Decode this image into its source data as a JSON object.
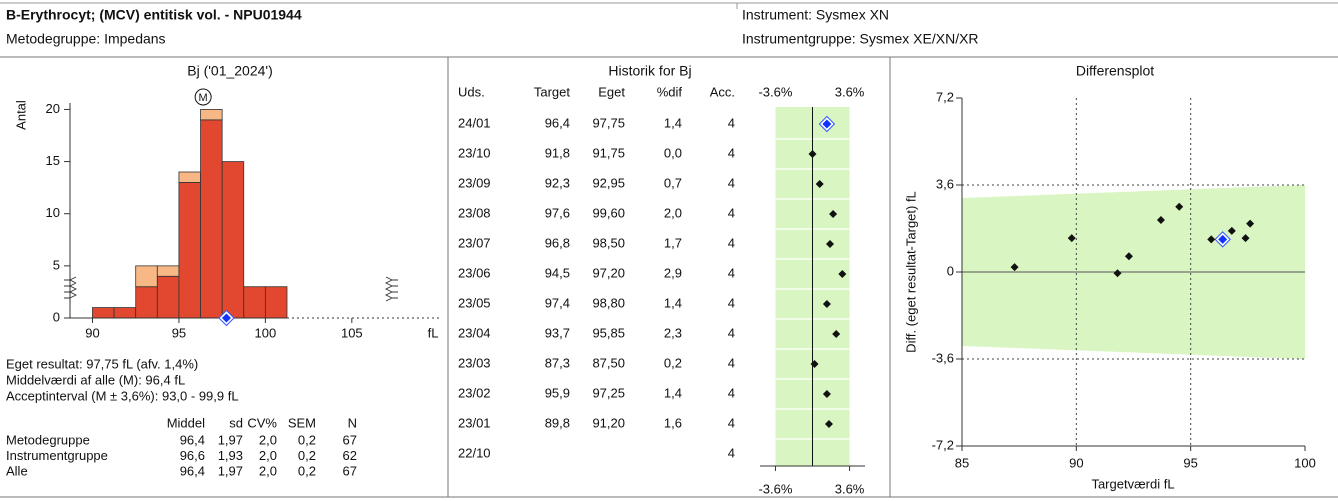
{
  "header": {
    "title": "B-Erythrocyt; (MCV) entitisk vol. - NPU01944",
    "method_group": "Metodegruppe: Impedans",
    "instrument": "Instrument: Sysmex XN",
    "instrument_group": "Instrumentgruppe: Sysmex XE/XN/XR"
  },
  "chart_data": [
    {
      "type": "histogram",
      "title": "Bj ('01_2024')",
      "ylabel": "Antal",
      "xlabel": "fL",
      "bins": [
        90,
        91.25,
        92.5,
        93.75,
        95,
        96.25,
        97.5,
        98.75,
        100,
        101.25
      ],
      "series": [
        {
          "color": "#e2482f",
          "values": [
            1,
            1,
            3,
            4,
            13,
            19,
            15,
            3,
            3
          ]
        },
        {
          "color": "#f8b886",
          "values": [
            0,
            0,
            2,
            1,
            1,
            1,
            0,
            0,
            0
          ]
        }
      ],
      "xlim": [
        88.7,
        110.1
      ],
      "xticks": [
        90,
        95,
        100,
        105
      ],
      "ylim": [
        0,
        21
      ],
      "yticks": [
        0,
        5,
        10,
        15,
        20
      ],
      "mean_marker": {
        "label": "M",
        "value": 96.4
      },
      "own_result": 97.75
    },
    {
      "type": "dot",
      "title": "Historik for Bj",
      "values": [
        1.4,
        0.0,
        0.7,
        2.0,
        1.7,
        2.9,
        1.4,
        2.3,
        0.2,
        1.4,
        1.6,
        null
      ],
      "xlim": [
        -5.1,
        5.1
      ],
      "xticks": [
        {
          "value": -3.6,
          "label": "-3.6%"
        },
        {
          "value": 3.6,
          "label": "3.6%"
        }
      ],
      "band_color": "#d8f5c2"
    },
    {
      "type": "scatter",
      "title": "Differensplot",
      "xlabel": "Targetværdi fL",
      "ylabel": "Diff. (eget resultat-Target) fL",
      "x": [
        96.4,
        91.8,
        92.3,
        97.6,
        96.8,
        94.5,
        97.4,
        93.7,
        87.3,
        95.9,
        89.8
      ],
      "values": [
        1.35,
        -0.05,
        0.65,
        2.0,
        1.7,
        2.7,
        1.4,
        2.15,
        0.2,
        1.35,
        1.4
      ],
      "xlim": [
        85,
        100
      ],
      "xticks": [
        85,
        90,
        95,
        100
      ],
      "ylim": [
        -7.2,
        7.2
      ],
      "yticks": [
        {
          "value": 7.2,
          "label": "7,2"
        },
        {
          "value": 3.6,
          "label": "3,6"
        },
        0,
        {
          "value": -3.6,
          "label": "-3,6"
        },
        {
          "value": -7.2,
          "label": "-7,2"
        }
      ],
      "band_color": "#d8f5c2"
    }
  ],
  "summary": {
    "lines": [
      "Eget resultat: 97,75 fL (afv. 1,4%)",
      "Middelværdi af alle (M): 96,4 fL",
      "Acceptinterval (M ± 3,6%): 93,0 - 99,9 fL"
    ],
    "columns": [
      "Middel",
      "sd",
      "CV%",
      "SEM",
      "N"
    ],
    "rows": [
      [
        "Metodegruppe",
        "96,4",
        "1,97",
        "2,0",
        "0,2",
        "67"
      ],
      [
        "Instrumentgruppe",
        "96,6",
        "1,93",
        "2,0",
        "0,2",
        "62"
      ],
      [
        "Alle",
        "96,4",
        "1,97",
        "2,0",
        "0,2",
        "67"
      ]
    ]
  },
  "history": {
    "columns": [
      "Uds.",
      "Target",
      "Eget",
      "%dif",
      "Acc."
    ],
    "rows": [
      [
        "24/01",
        "96,4",
        "97,75",
        "1,4",
        "4"
      ],
      [
        "23/10",
        "91,8",
        "91,75",
        "0,0",
        "4"
      ],
      [
        "23/09",
        "92,3",
        "92,95",
        "0,7",
        "4"
      ],
      [
        "23/08",
        "97,6",
        "99,60",
        "2,0",
        "4"
      ],
      [
        "23/07",
        "96,8",
        "98,50",
        "1,7",
        "4"
      ],
      [
        "23/06",
        "94,5",
        "97,20",
        "2,9",
        "4"
      ],
      [
        "23/05",
        "97,4",
        "98,80",
        "1,4",
        "4"
      ],
      [
        "23/04",
        "93,7",
        "95,85",
        "2,3",
        "4"
      ],
      [
        "23/03",
        "87,3",
        "87,50",
        "0,2",
        "4"
      ],
      [
        "23/02",
        "95,9",
        "97,25",
        "1,4",
        "4"
      ],
      [
        "23/01",
        "89,8",
        "91,20",
        "1,6",
        "4"
      ],
      [
        "22/10",
        null,
        null,
        null,
        "4"
      ]
    ]
  }
}
